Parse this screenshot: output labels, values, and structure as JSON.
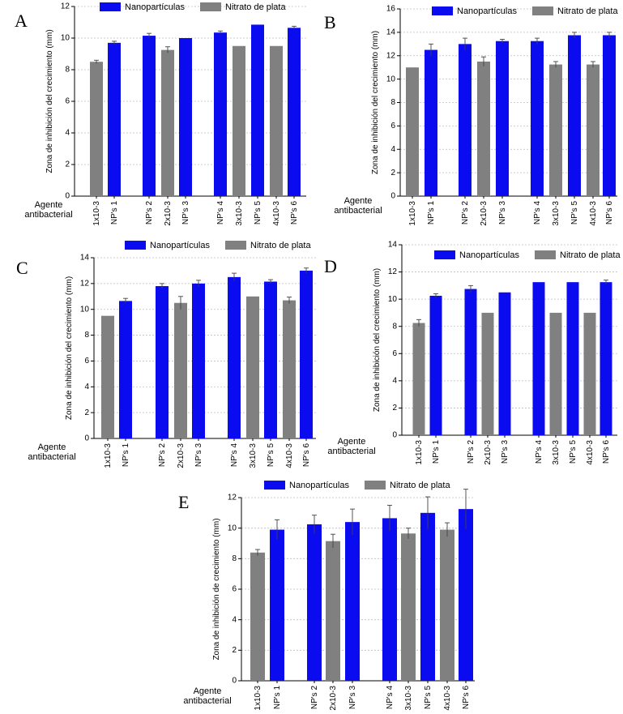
{
  "legend": {
    "nano": "Nanopartículas",
    "nitrate": "Nitrato de plata"
  },
  "colors": {
    "nano": "#0b0bf0",
    "nitrate": "#808080",
    "grid": "#bdbdbd",
    "axis": "#000000"
  },
  "agent_label": [
    "Agente",
    "antibacterial"
  ],
  "chart_data": [
    {
      "id": "A",
      "type": "bar",
      "panel_label": "A",
      "ylabel": "Zona de inhibición del crecimiento (mm)",
      "ylim": [
        0,
        12
      ],
      "yticks": [
        0,
        2,
        4,
        6,
        8,
        10,
        12
      ],
      "bars": [
        {
          "label": "1x10-3",
          "series": "nitrate",
          "value": 8.5,
          "err": 0.1
        },
        {
          "label": "NP's 1",
          "series": "nano",
          "value": 9.7,
          "err": 0.1
        },
        {
          "label": "NP's 2",
          "series": "nano",
          "value": 10.15,
          "err": 0.15
        },
        {
          "label": "2x10-3",
          "series": "nitrate",
          "value": 9.25,
          "err": 0.2
        },
        {
          "label": "NP's 3",
          "series": "nano",
          "value": 10.0,
          "err": 0
        },
        {
          "label": "NP's 4",
          "series": "nano",
          "value": 10.35,
          "err": 0.1
        },
        {
          "label": "3x10-3",
          "series": "nitrate",
          "value": 9.5,
          "err": 0
        },
        {
          "label": "NP's 5",
          "series": "nano",
          "value": 10.85,
          "err": 0
        },
        {
          "label": "4x10-3",
          "series": "nitrate",
          "value": 9.5,
          "err": 0
        },
        {
          "label": "NP's 6",
          "series": "nano",
          "value": 10.65,
          "err": 0.1
        }
      ]
    },
    {
      "id": "B",
      "type": "bar",
      "panel_label": "B",
      "ylabel": "Zona de inhibición del crecimiento (mm)",
      "ylim": [
        0,
        16
      ],
      "yticks": [
        0,
        2,
        4,
        6,
        8,
        10,
        12,
        14,
        16
      ],
      "bars": [
        {
          "label": "1x10-3",
          "series": "nitrate",
          "value": 11.0,
          "err": 0
        },
        {
          "label": "NP's 1",
          "series": "nano",
          "value": 12.5,
          "err": 0.5
        },
        {
          "label": "NP's 2",
          "series": "nano",
          "value": 13.0,
          "err": 0.5
        },
        {
          "label": "2x10-3",
          "series": "nitrate",
          "value": 11.5,
          "err": 0.4
        },
        {
          "label": "NP's 3",
          "series": "nano",
          "value": 13.25,
          "err": 0.15
        },
        {
          "label": "NP's 4",
          "series": "nano",
          "value": 13.25,
          "err": 0.25
        },
        {
          "label": "3x10-3",
          "series": "nitrate",
          "value": 11.25,
          "err": 0.25
        },
        {
          "label": "NP's 5",
          "series": "nano",
          "value": 13.75,
          "err": 0.25
        },
        {
          "label": "4x10-3",
          "series": "nitrate",
          "value": 11.25,
          "err": 0.25
        },
        {
          "label": "NP's 6",
          "series": "nano",
          "value": 13.75,
          "err": 0.25
        }
      ]
    },
    {
      "id": "C",
      "type": "bar",
      "panel_label": "C",
      "ylabel": "Zona de inhibición del crecimiento (mm)",
      "ylim": [
        0,
        14
      ],
      "yticks": [
        0,
        2,
        4,
        6,
        8,
        10,
        12,
        14
      ],
      "bars": [
        {
          "label": "1x10-3",
          "series": "nitrate",
          "value": 9.5,
          "err": 0
        },
        {
          "label": "NP's 1",
          "series": "nano",
          "value": 10.65,
          "err": 0.2
        },
        {
          "label": "NP's 2",
          "series": "nano",
          "value": 11.8,
          "err": 0.2
        },
        {
          "label": "2x10-3",
          "series": "nitrate",
          "value": 10.5,
          "err": 0.5
        },
        {
          "label": "NP's 3",
          "series": "nano",
          "value": 12.0,
          "err": 0.25
        },
        {
          "label": "NP's 4",
          "series": "nano",
          "value": 12.5,
          "err": 0.3
        },
        {
          "label": "3x10-3",
          "series": "nitrate",
          "value": 11.0,
          "err": 0
        },
        {
          "label": "NP's 5",
          "series": "nano",
          "value": 12.15,
          "err": 0.15
        },
        {
          "label": "4x10-3",
          "series": "nitrate",
          "value": 10.7,
          "err": 0.25
        },
        {
          "label": "NP's 6",
          "series": "nano",
          "value": 13.0,
          "err": 0.2
        }
      ]
    },
    {
      "id": "D",
      "type": "bar",
      "panel_label": "D",
      "ylabel": "Zona de inhibición del crecimiento (mm)",
      "ylim": [
        0,
        14
      ],
      "yticks": [
        0,
        2,
        4,
        6,
        8,
        10,
        12,
        14
      ],
      "bars": [
        {
          "label": "1x10-3",
          "series": "nitrate",
          "value": 8.25,
          "err": 0.25
        },
        {
          "label": "NP's 1",
          "series": "nano",
          "value": 10.25,
          "err": 0.15
        },
        {
          "label": "NP's 2",
          "series": "nano",
          "value": 10.75,
          "err": 0.25
        },
        {
          "label": "2x10-3",
          "series": "nitrate",
          "value": 9.0,
          "err": 0
        },
        {
          "label": "NP's 3",
          "series": "nano",
          "value": 10.5,
          "err": 0
        },
        {
          "label": "NP's 4",
          "series": "nano",
          "value": 11.25,
          "err": 0
        },
        {
          "label": "3x10-3",
          "series": "nitrate",
          "value": 9.0,
          "err": 0
        },
        {
          "label": "NP's 5",
          "series": "nano",
          "value": 11.25,
          "err": 0
        },
        {
          "label": "4x10-3",
          "series": "nitrate",
          "value": 9.0,
          "err": 0
        },
        {
          "label": "NP's 6",
          "series": "nano",
          "value": 11.25,
          "err": 0.15
        }
      ]
    },
    {
      "id": "E",
      "type": "bar",
      "panel_label": "E",
      "ylabel": "Zona de inhibición de crecimiento (mm)",
      "ylim": [
        0,
        12
      ],
      "yticks": [
        0,
        2,
        4,
        6,
        8,
        10,
        12
      ],
      "bars": [
        {
          "label": "1x10-3",
          "series": "nitrate",
          "value": 8.4,
          "err": 0.2
        },
        {
          "label": "NP's 1",
          "series": "nano",
          "value": 9.9,
          "err": 0.65
        },
        {
          "label": "NP's 2",
          "series": "nano",
          "value": 10.25,
          "err": 0.6
        },
        {
          "label": "2x10-3",
          "series": "nitrate",
          "value": 9.15,
          "err": 0.45
        },
        {
          "label": "NP's 3",
          "series": "nano",
          "value": 10.4,
          "err": 0.85
        },
        {
          "label": "NP's 4",
          "series": "nano",
          "value": 10.65,
          "err": 0.85
        },
        {
          "label": "3x10-3",
          "series": "nitrate",
          "value": 9.65,
          "err": 0.35
        },
        {
          "label": "NP's 5",
          "series": "nano",
          "value": 11.0,
          "err": 1.05
        },
        {
          "label": "4x10-3",
          "series": "nitrate",
          "value": 9.9,
          "err": 0.45
        },
        {
          "label": "NP's 6",
          "series": "nano",
          "value": 11.25,
          "err": 1.3
        }
      ]
    }
  ]
}
